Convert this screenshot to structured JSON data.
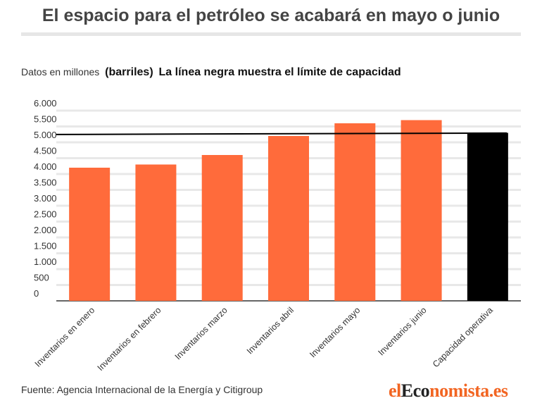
{
  "title": "El espacio para el petróleo se acabará en mayo o junio",
  "subtitle": {
    "unit": "Datos en millones",
    "unit_bold": "(barriles)",
    "note": "La línea negra muestra el límite de capacidad"
  },
  "source": "Fuente: Agencia Internacional de la Energía y Citigroup",
  "logo": {
    "part1": "el",
    "part2": "Eco",
    "part3": "nomista.es"
  },
  "chart_data": {
    "type": "bar",
    "categories": [
      "Inventarios en enero",
      "Inventarios en febrero",
      "Inventarios marzo",
      "Inventarios abril",
      "Inventarios mayo",
      "Inventarios junio",
      "Capacidad operativa"
    ],
    "values": [
      4200,
      4300,
      4600,
      5200,
      5600,
      5700,
      5300
    ],
    "bar_colors": [
      "#ff6b3b",
      "#ff6b3b",
      "#ff6b3b",
      "#ff6b3b",
      "#ff6b3b",
      "#ff6b3b",
      "#000000"
    ],
    "reference_line": {
      "value": 5270,
      "color": "#000000"
    },
    "ylim": [
      0,
      6000
    ],
    "yticks": [
      0,
      500,
      1000,
      1500,
      2000,
      2500,
      3000,
      3500,
      4000,
      4500,
      5000,
      5500,
      6000
    ],
    "ytick_labels": [
      "0",
      "500",
      "1.000",
      "1.500",
      "2.000",
      "2.500",
      "3.000",
      "3.500",
      "4.000",
      "4.500",
      "5.000",
      "5.500",
      "6.000"
    ],
    "grid": true
  }
}
